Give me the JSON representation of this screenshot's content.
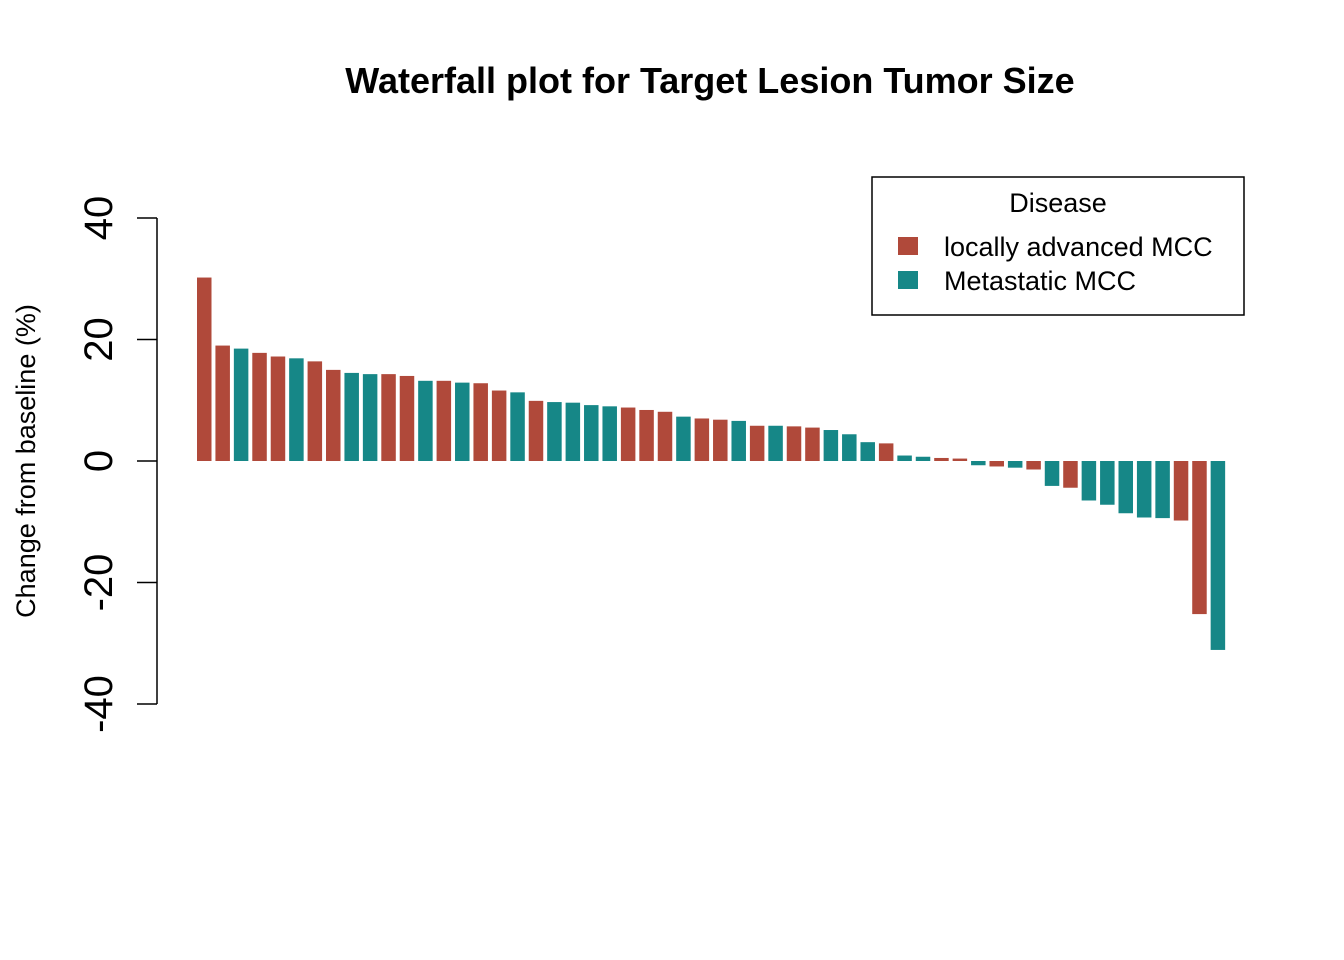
{
  "chart_data": {
    "type": "bar",
    "title": "Waterfall plot for Target Lesion Tumor Size",
    "xlabel": "",
    "ylabel": "Change from baseline (%)",
    "ylim": [
      -40,
      40
    ],
    "yticks": [
      -40,
      -20,
      0,
      20,
      40
    ],
    "ytick_labels": [
      "-40",
      "-20",
      "0",
      "20",
      "40"
    ],
    "grid": false,
    "legend": {
      "title": "Disease",
      "placement": "top-right",
      "entries": [
        {
          "key": "LA",
          "label": "locally advanced MCC",
          "color": "#B0493A"
        },
        {
          "key": "M",
          "label": "Metastatic MCC",
          "color": "#168787"
        }
      ]
    },
    "values": [
      30.2,
      19.0,
      18.5,
      17.8,
      17.2,
      16.9,
      16.4,
      15.0,
      14.5,
      14.3,
      14.3,
      14.0,
      13.2,
      13.2,
      12.9,
      12.8,
      11.6,
      11.3,
      9.9,
      9.7,
      9.6,
      9.2,
      9.0,
      8.8,
      8.4,
      8.1,
      7.3,
      7.0,
      6.8,
      6.6,
      5.8,
      5.8,
      5.7,
      5.5,
      5.1,
      4.4,
      3.1,
      2.9,
      0.9,
      0.7,
      0.5,
      0.4,
      -0.7,
      -0.9,
      -1.1,
      -1.4,
      -4.1,
      -4.4,
      -6.5,
      -7.2,
      -8.6,
      -9.3,
      -9.4,
      -9.8,
      -25.2,
      -31.1
    ],
    "groups": [
      "LA",
      "LA",
      "M",
      "LA",
      "LA",
      "M",
      "LA",
      "LA",
      "M",
      "M",
      "LA",
      "LA",
      "M",
      "LA",
      "M",
      "LA",
      "LA",
      "M",
      "LA",
      "M",
      "M",
      "M",
      "M",
      "LA",
      "LA",
      "LA",
      "M",
      "LA",
      "LA",
      "M",
      "LA",
      "M",
      "LA",
      "LA",
      "M",
      "M",
      "M",
      "LA",
      "M",
      "M",
      "LA",
      "LA",
      "M",
      "LA",
      "M",
      "LA",
      "M",
      "LA",
      "M",
      "M",
      "M",
      "M",
      "M",
      "LA",
      "LA",
      "M"
    ]
  }
}
